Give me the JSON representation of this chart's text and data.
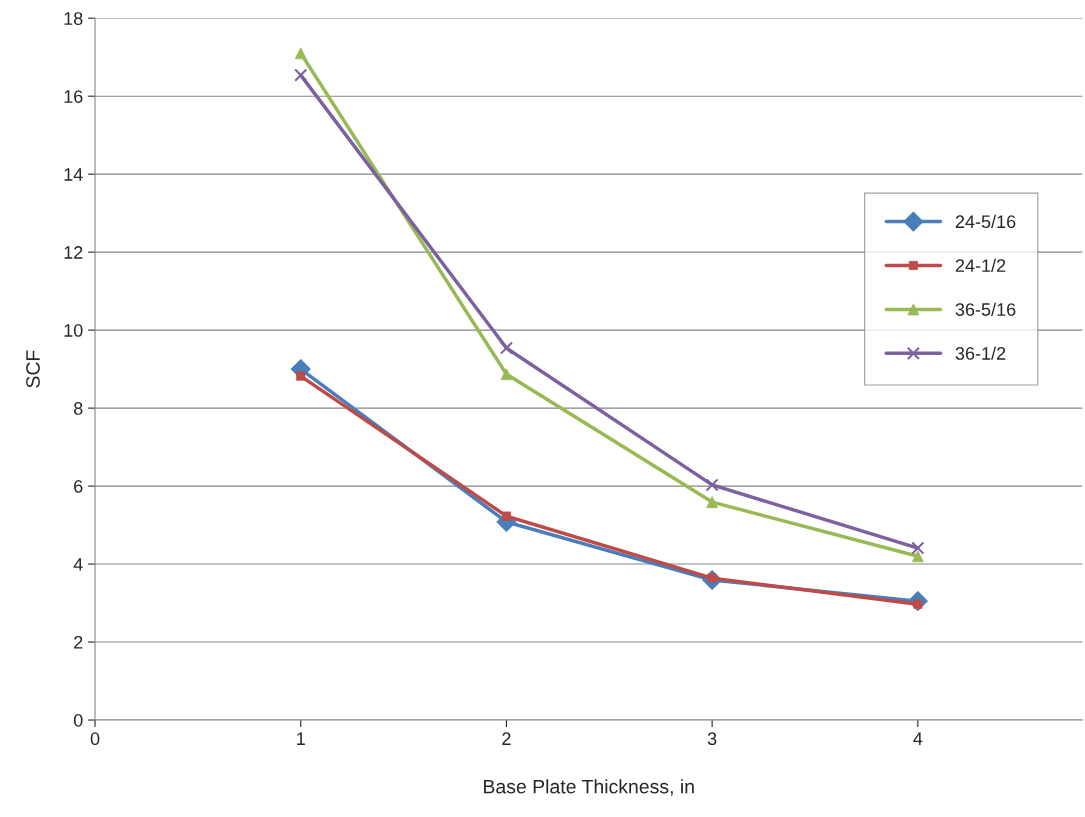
{
  "chart_data": {
    "type": "line",
    "xlabel": "Base Plate Thickness, in",
    "ylabel": "SCF",
    "x": [
      1,
      2,
      3,
      4
    ],
    "series": [
      {
        "name": "24-5/16",
        "color": "#4a7ebb",
        "marker": "diamond",
        "values": [
          9.0,
          5.08,
          3.59,
          3.05
        ]
      },
      {
        "name": "24-1/2",
        "color": "#be4b48",
        "marker": "square",
        "values": [
          8.82,
          5.23,
          3.64,
          2.97
        ]
      },
      {
        "name": "36-5/16",
        "color": "#98b954",
        "marker": "triangle",
        "values": [
          17.1,
          8.87,
          5.59,
          4.2
        ]
      },
      {
        "name": "36-1/2",
        "color": "#7d60a0",
        "marker": "cross",
        "values": [
          16.54,
          9.54,
          6.03,
          4.41
        ]
      }
    ],
    "xlim": [
      0,
      4.8
    ],
    "xticks": [
      0,
      1,
      2,
      3,
      4
    ],
    "ylim": [
      0,
      18
    ],
    "yticks": [
      0,
      2,
      4,
      6,
      8,
      10,
      12,
      14,
      16,
      18
    ],
    "grid": "y",
    "legend": "right",
    "line_style": "solid"
  }
}
